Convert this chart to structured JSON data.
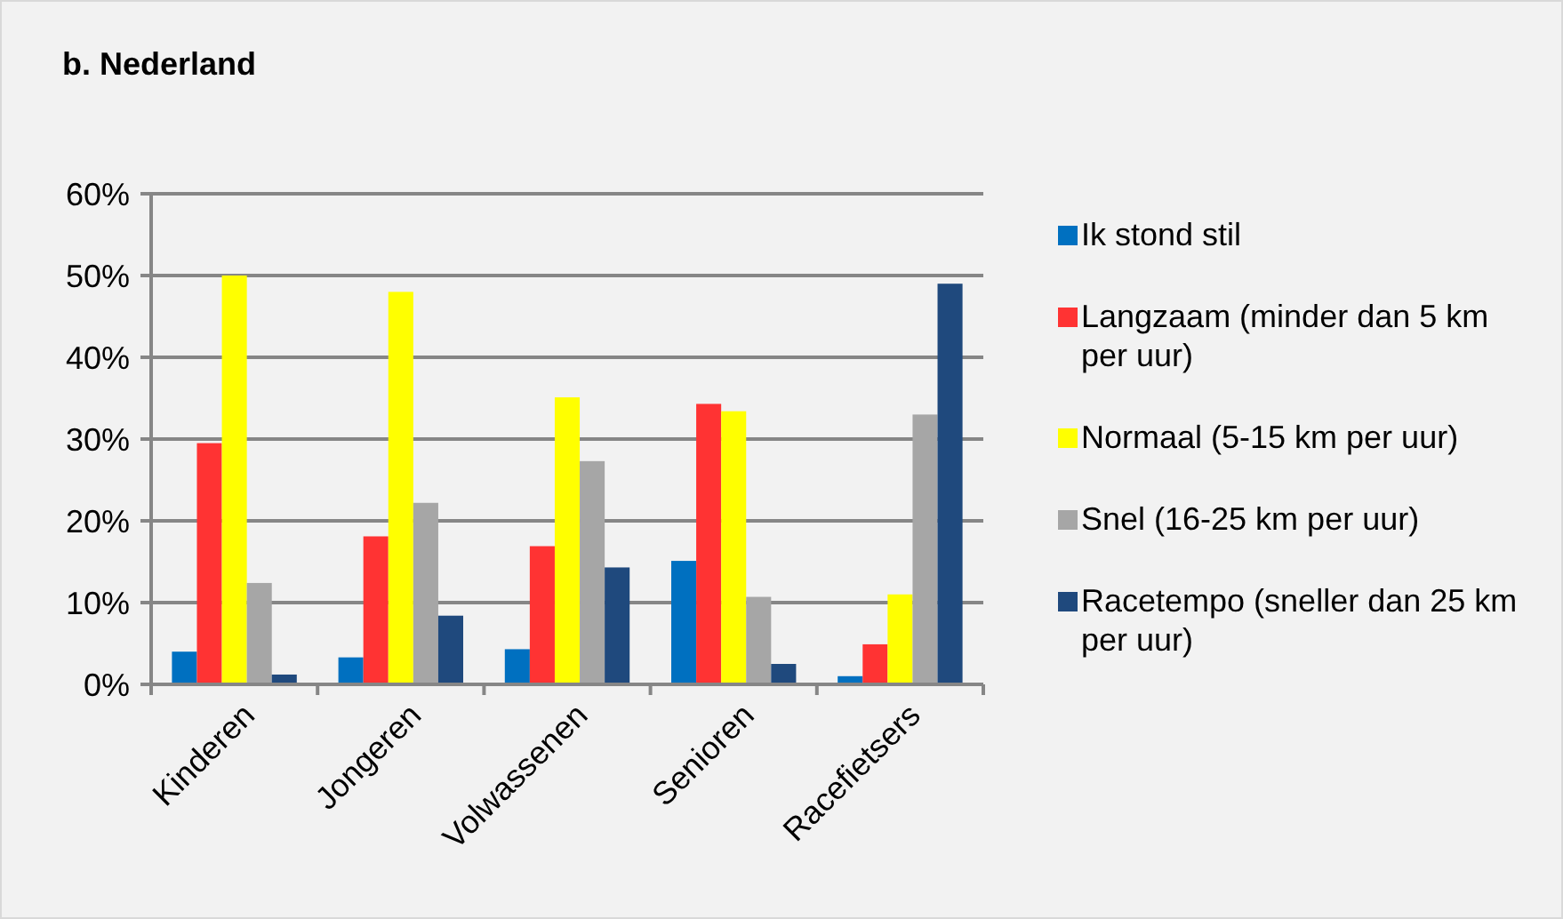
{
  "chart_data": {
    "type": "bar",
    "title": "b. Nederland",
    "categories": [
      "Kinderen",
      "Jongeren",
      "Volwassenen",
      "Senioren",
      "Racefietsers"
    ],
    "series": [
      {
        "name": "Ik stond stil",
        "color": "#0070c0",
        "values": [
          4.0,
          3.3,
          4.3,
          15.1,
          1.0
        ]
      },
      {
        "name": "Langzaam (minder dan 5 km per uur)",
        "color": "#ff3333",
        "values": [
          29.5,
          18.1,
          16.9,
          34.3,
          4.9
        ]
      },
      {
        "name": "Normaal (5-15 km per uur)",
        "color": "#ffff00",
        "values": [
          50,
          48,
          35.1,
          33.4,
          11
        ]
      },
      {
        "name": "Snel (16-25 km per uur)",
        "color": "#a6a6a6",
        "values": [
          12.4,
          22.2,
          27.3,
          10.7,
          33
        ]
      },
      {
        "name": "Racetempo (sneller dan 25 km per uur)",
        "color": "#1f497d",
        "values": [
          1.2,
          8.4,
          14.3,
          2.5,
          49
        ]
      }
    ],
    "ylim": [
      0,
      60
    ],
    "yticks": [
      {
        "value": 0,
        "label": "0%"
      },
      {
        "value": 10,
        "label": "10%"
      },
      {
        "value": 20,
        "label": "20%"
      },
      {
        "value": 30,
        "label": "30%"
      },
      {
        "value": 40,
        "label": "40%"
      },
      {
        "value": 50,
        "label": "50%"
      },
      {
        "value": 60,
        "label": "60%"
      }
    ],
    "grid": "y",
    "legend": "right"
  }
}
